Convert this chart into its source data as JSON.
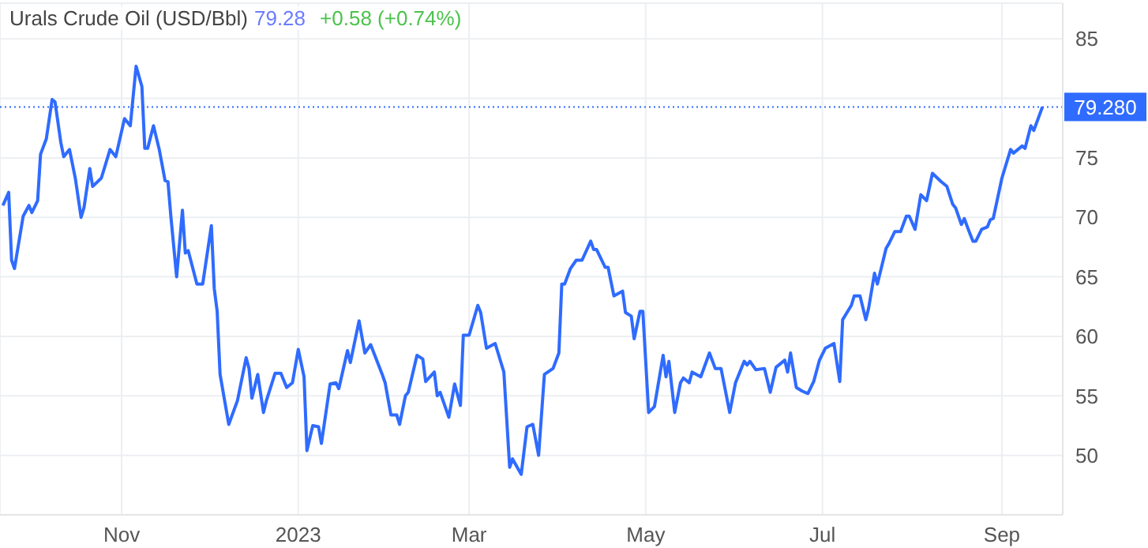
{
  "chart_data": {
    "type": "line",
    "title": "Urals Crude Oil (USD/Bbl)",
    "annotations": [
      "79.28",
      "+0.58 (+0.74%)"
    ],
    "x": [
      "2022-09-21",
      "2022-09-23",
      "2022-09-24",
      "2022-09-25",
      "2022-09-28",
      "2022-09-30",
      "2022-10-01",
      "2022-10-03",
      "2022-10-04",
      "2022-10-06",
      "2022-10-08",
      "2022-10-09",
      "2022-10-11",
      "2022-10-12",
      "2022-10-14",
      "2022-10-16",
      "2022-10-18",
      "2022-10-19",
      "2022-10-21",
      "2022-10-22",
      "2022-10-25",
      "2022-10-28",
      "2022-10-30",
      "2022-11-02",
      "2022-11-04",
      "2022-11-06",
      "2022-11-08",
      "2022-11-09",
      "2022-11-10",
      "2022-11-12",
      "2022-11-14",
      "2022-11-16",
      "2022-11-17",
      "2022-11-18",
      "2022-11-20",
      "2022-11-22",
      "2022-11-23",
      "2022-11-24",
      "2022-11-27",
      "2022-11-29",
      "2022-12-02",
      "2022-12-03",
      "2022-12-04",
      "2022-12-05",
      "2022-12-08",
      "2022-12-11",
      "2022-12-14",
      "2022-12-15",
      "2022-12-16",
      "2022-12-18",
      "2022-12-20",
      "2022-12-21",
      "2022-12-24",
      "2022-12-26",
      "2022-12-28",
      "2022-12-30",
      "2023-01-01",
      "2023-01-03",
      "2023-01-04",
      "2023-01-06",
      "2023-01-08",
      "2023-01-09",
      "2023-01-12",
      "2023-01-14",
      "2023-01-15",
      "2023-01-18",
      "2023-01-19",
      "2023-01-22",
      "2023-01-24",
      "2023-01-26",
      "2023-01-30",
      "2023-01-31",
      "2023-02-02",
      "2023-02-04",
      "2023-02-05",
      "2023-02-07",
      "2023-02-08",
      "2023-02-11",
      "2023-02-13",
      "2023-02-14",
      "2023-02-17",
      "2023-02-18",
      "2023-02-19",
      "2023-02-22",
      "2023-02-24",
      "2023-02-26",
      "2023-02-27",
      "2023-03-01",
      "2023-03-04",
      "2023-03-05",
      "2023-03-07",
      "2023-03-10",
      "2023-03-13",
      "2023-03-15",
      "2023-03-16",
      "2023-03-19",
      "2023-03-21",
      "2023-03-23",
      "2023-03-25",
      "2023-03-27",
      "2023-03-30",
      "2023-04-01",
      "2023-04-02",
      "2023-04-03",
      "2023-04-05",
      "2023-04-07",
      "2023-04-09",
      "2023-04-12",
      "2023-04-13",
      "2023-04-14",
      "2023-04-17",
      "2023-04-18",
      "2023-04-20",
      "2023-04-23",
      "2023-04-24",
      "2023-04-26",
      "2023-04-27",
      "2023-04-29",
      "2023-04-30",
      "2023-05-02",
      "2023-05-04",
      "2023-05-07",
      "2023-05-08",
      "2023-05-09",
      "2023-05-11",
      "2023-05-13",
      "2023-05-14",
      "2023-05-16",
      "2023-05-17",
      "2023-05-20",
      "2023-05-23",
      "2023-05-25",
      "2023-05-27",
      "2023-05-30",
      "2023-06-01",
      "2023-06-04",
      "2023-06-05",
      "2023-06-06",
      "2023-06-08",
      "2023-06-11",
      "2023-06-13",
      "2023-06-15",
      "2023-06-18",
      "2023-06-19",
      "2023-06-20",
      "2023-06-22",
      "2023-06-24",
      "2023-06-26",
      "2023-06-28",
      "2023-06-30",
      "2023-07-02",
      "2023-07-05",
      "2023-07-07",
      "2023-07-08",
      "2023-07-11",
      "2023-07-12",
      "2023-07-14",
      "2023-07-16",
      "2023-07-17",
      "2023-07-19",
      "2023-07-20",
      "2023-07-23",
      "2023-07-24",
      "2023-07-26",
      "2023-07-28",
      "2023-07-30",
      "2023-07-31",
      "2023-08-02",
      "2023-08-04",
      "2023-08-06",
      "2023-08-08",
      "2023-08-11",
      "2023-08-13",
      "2023-08-15",
      "2023-08-16",
      "2023-08-18",
      "2023-08-19",
      "2023-08-21",
      "2023-08-22",
      "2023-08-23",
      "2023-08-25",
      "2023-08-27",
      "2023-08-28",
      "2023-08-29",
      "2023-09-01",
      "2023-09-04",
      "2023-09-05",
      "2023-09-08",
      "2023-09-09",
      "2023-09-11",
      "2023-09-12",
      "2023-09-15"
    ],
    "series": [
      {
        "color": "#2f6bff",
        "values": [
          71.0,
          72.1,
          66.4,
          65.7,
          70.1,
          71.0,
          70.4,
          71.4,
          75.3,
          76.6,
          79.9,
          79.7,
          76.3,
          75.1,
          75.7,
          73.3,
          70.0,
          70.8,
          74.1,
          72.6,
          73.3,
          75.7,
          75.1,
          78.3,
          77.7,
          82.7,
          81.0,
          75.8,
          75.8,
          77.7,
          75.7,
          73.1,
          73.0,
          70.1,
          65.0,
          70.6,
          67.0,
          67.2,
          64.4,
          64.4,
          69.3,
          64.0,
          62.1,
          56.8,
          52.6,
          54.6,
          58.2,
          57.3,
          54.8,
          56.8,
          53.6,
          54.6,
          56.9,
          56.9,
          55.7,
          56.1,
          58.9,
          56.6,
          50.4,
          52.5,
          52.4,
          51.0,
          56.0,
          56.1,
          55.6,
          58.8,
          57.8,
          61.3,
          58.6,
          59.3,
          56.8,
          56.1,
          53.4,
          53.4,
          52.6,
          55.0,
          55.3,
          58.4,
          58.1,
          56.2,
          57.0,
          55.0,
          55.3,
          53.2,
          56.0,
          54.2,
          60.1,
          60.1,
          62.6,
          62.0,
          59.0,
          59.4,
          57.0,
          49.0,
          49.7,
          48.4,
          52.4,
          52.6,
          50.0,
          56.8,
          57.3,
          58.6,
          64.4,
          64.4,
          65.7,
          66.4,
          66.4,
          68.0,
          67.3,
          67.3,
          65.8,
          65.8,
          63.4,
          63.8,
          62.0,
          61.7,
          59.8,
          62.1,
          62.1,
          53.6,
          54.1,
          58.4,
          56.6,
          57.9,
          53.6,
          56.1,
          56.5,
          56.1,
          57.0,
          56.6,
          58.6,
          57.3,
          57.3,
          53.6,
          56.1,
          57.9,
          57.6,
          57.9,
          57.2,
          57.3,
          55.3,
          57.4,
          58.0,
          57.0,
          58.6,
          55.7,
          55.4,
          55.2,
          56.2,
          58.0,
          59.0,
          59.4,
          56.2,
          61.4,
          62.6,
          63.4,
          63.4,
          61.4,
          62.4,
          65.3,
          64.4,
          67.4,
          67.8,
          68.8,
          68.8,
          70.1,
          70.1,
          69.0,
          71.9,
          71.4,
          73.7,
          73.0,
          72.6,
          71.1,
          70.8,
          69.4,
          69.9,
          68.6,
          68.0,
          68.0,
          69.0,
          69.2,
          69.8,
          69.9,
          73.3,
          75.7,
          75.4,
          76.0,
          75.8,
          77.7,
          77.3,
          79.28
        ]
      }
    ],
    "xlim": [
      "2022-09-20",
      "2023-09-22"
    ],
    "xticks": [
      {
        "value": "2022-11-01",
        "label": "Nov"
      },
      {
        "value": "2023-01-01",
        "label": "2023"
      },
      {
        "value": "2023-03-01",
        "label": "Mar"
      },
      {
        "value": "2023-05-01",
        "label": "May"
      },
      {
        "value": "2023-07-01",
        "label": "Jul"
      },
      {
        "value": "2023-09-01",
        "label": "Sep"
      }
    ],
    "ylim": [
      45,
      88
    ],
    "yticks": [
      50,
      55,
      60,
      65,
      70,
      75,
      {
        "value": 80,
        "label": null
      },
      85
    ],
    "ref_lines": [
      {
        "axis": "y",
        "value": 79.28,
        "label": "79.280",
        "color": "#2f6bff",
        "line_style": "dotted"
      }
    ],
    "grid": true,
    "legend": false,
    "marker": "none",
    "line_style": "solid"
  }
}
